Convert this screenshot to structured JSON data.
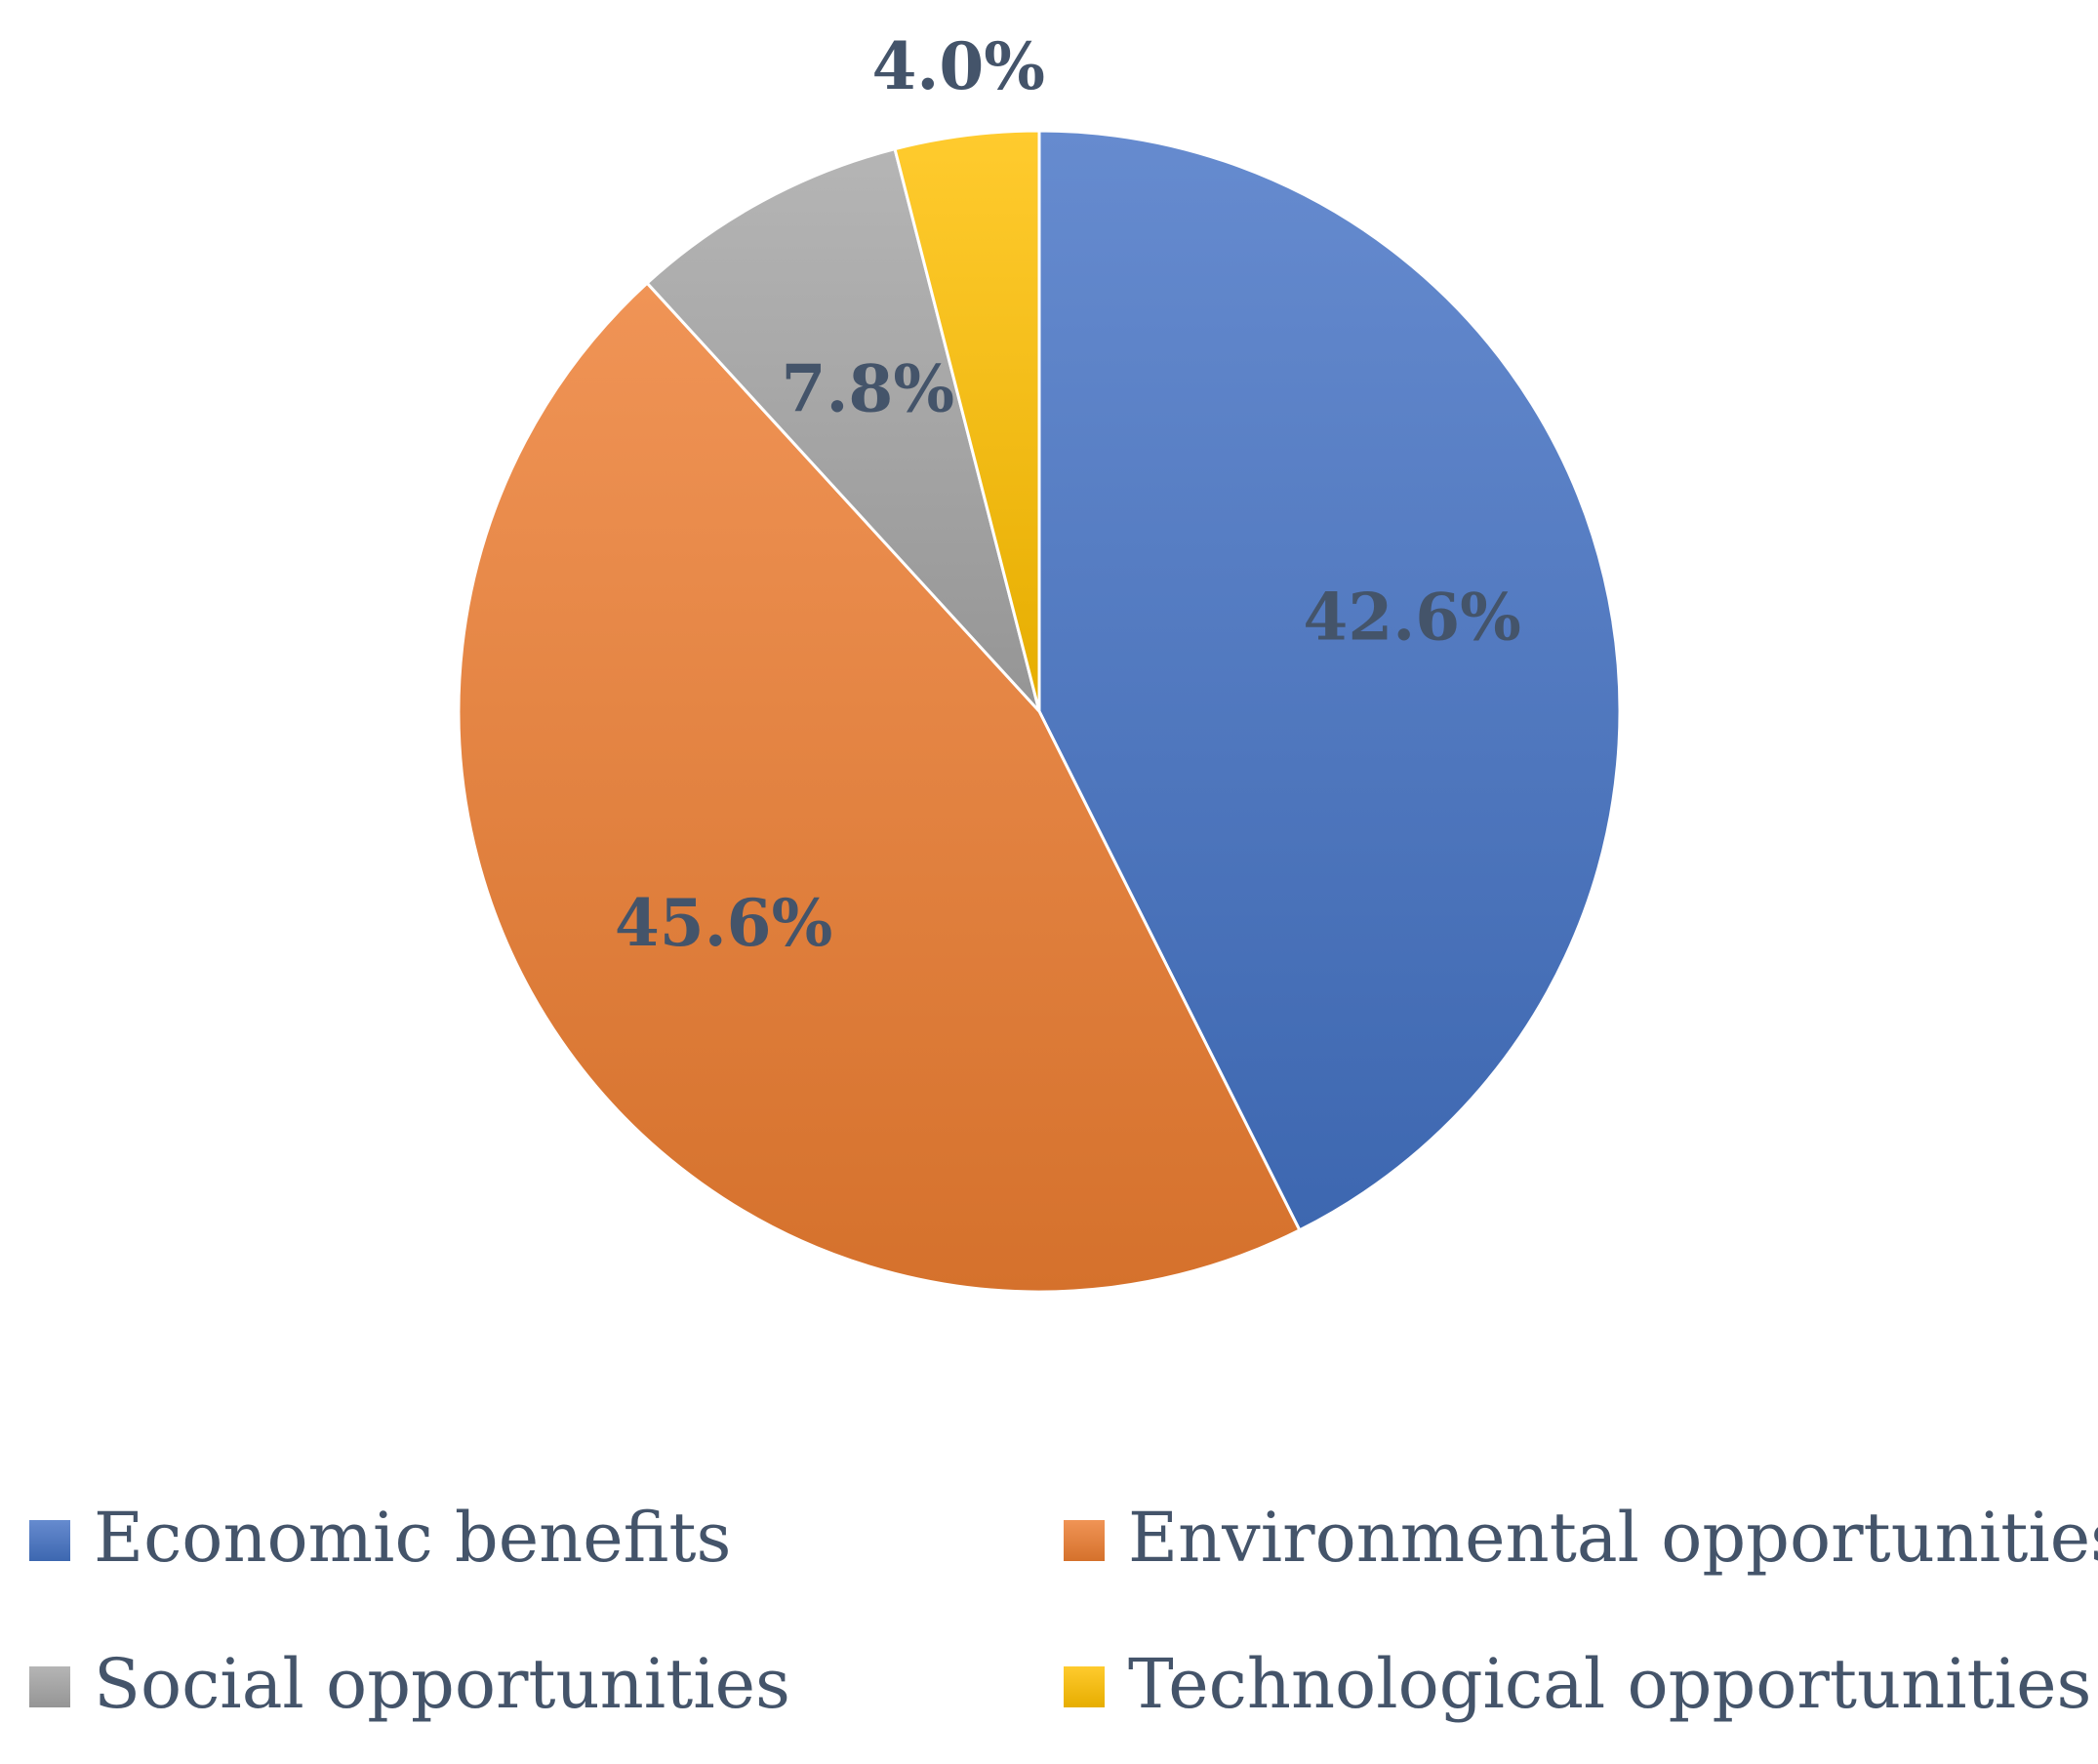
{
  "chart_data": {
    "type": "pie",
    "start_angle_deg": 0,
    "direction": "clockwise",
    "legend_position": "bottom",
    "slices": [
      {
        "label": "Economic benefits",
        "value": 42.6,
        "data_label": "42.6%",
        "color": "#4472c4"
      },
      {
        "label": "Environmental opportunities",
        "value": 45.6,
        "data_label": "45.6%",
        "color": "#ed7d31"
      },
      {
        "label": "Social opportunities",
        "value": 7.8,
        "data_label": "7.8%",
        "color": "#a5a5a5"
      },
      {
        "label": "Technological opportunities",
        "value": 4.0,
        "data_label": "4.0%",
        "color": "#ffc000"
      }
    ]
  }
}
